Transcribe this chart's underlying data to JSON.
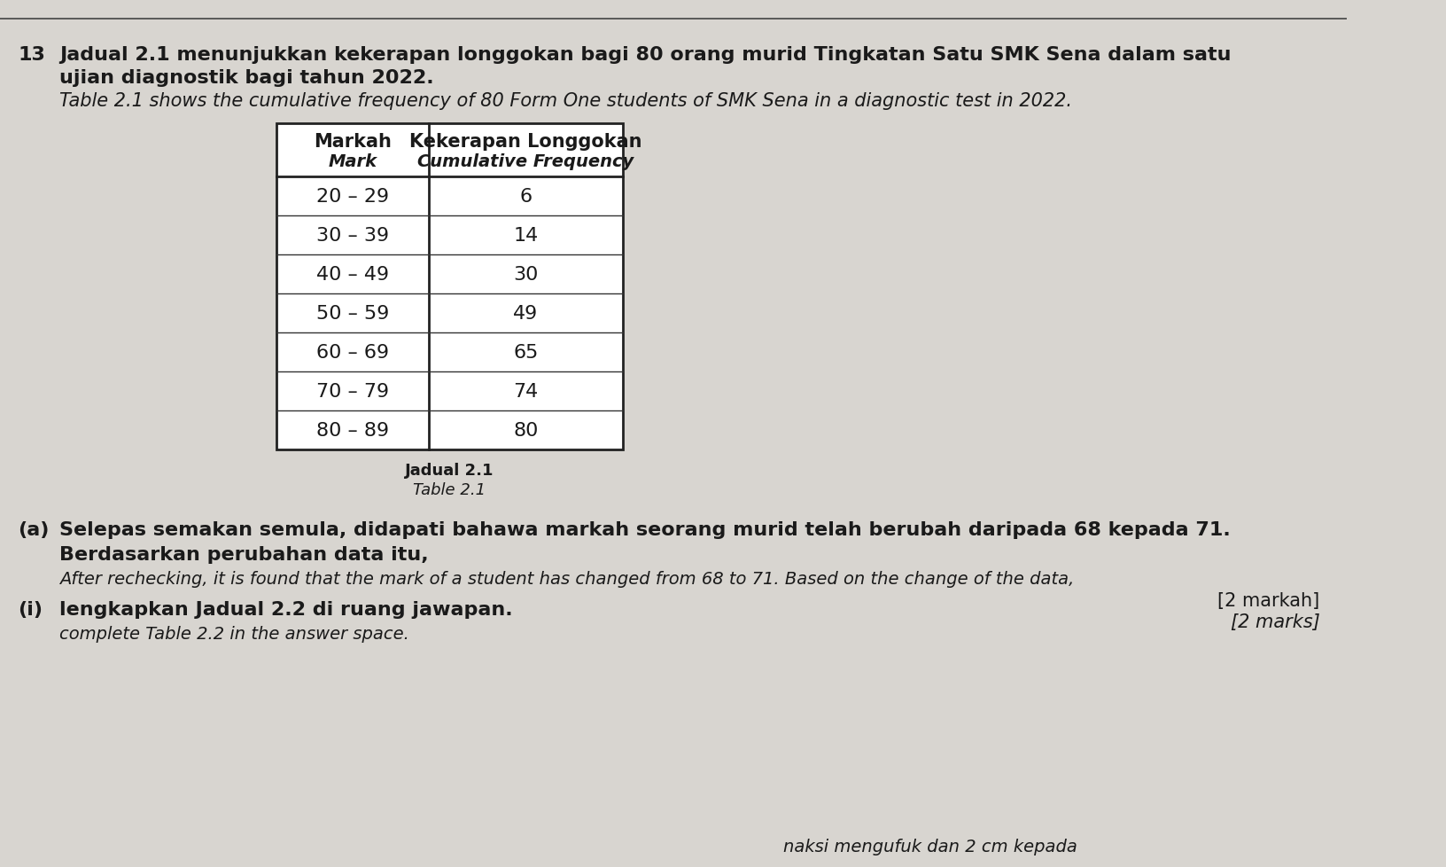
{
  "question_number": "13",
  "intro_text_line1": "Jadual 2.1 menunjukkan kekerapan longgokan bagi 80 orang murid Tingkatan Satu SMK Sena dalam satu",
  "intro_text_line2": "ujian diagnostik bagi tahun 2022.",
  "intro_italic_line": "Table 2.1 shows the cumulative frequency of 80 Form One students of SMK Sena in a diagnostic test in 2022.",
  "table_header_col1_line1": "Markah",
  "table_header_col1_line2": "Mark",
  "table_header_col2_line1": "Kekerapan Longgokan",
  "table_header_col2_line2": "Cumulative Frequency",
  "table_rows": [
    [
      "20 – 29",
      "6"
    ],
    [
      "30 – 39",
      "14"
    ],
    [
      "40 – 49",
      "30"
    ],
    [
      "50 – 59",
      "49"
    ],
    [
      "60 – 69",
      "65"
    ],
    [
      "70 – 79",
      "74"
    ],
    [
      "80 – 89",
      "80"
    ]
  ],
  "table_caption_line1": "Jadual 2.1",
  "table_caption_line2": "Table 2.1",
  "part_a_label": "(a)",
  "part_a_text_line1": "Selepas semakan semula, didapati bahawa markah seorang murid telah berubah daripada 68 kepada 71.",
  "part_a_text_line2": "Berdasarkan perubahan data itu,",
  "part_a_italic_line1": "After rechecking, it is found that the mark of a student has changed from 68 to 71. Based on the change of the data,",
  "marks_text_line1": "[2 markah]",
  "marks_text_line2": "[2 marks]",
  "part_i_label": "(i)",
  "part_i_text": "lengkapkan Jadual 2.2 di ruang jawapan.",
  "part_i_italic": "complete Table 2.2 in the answer space.",
  "bottom_text": "naksi mengufuk dan 2 cm kepada",
  "bg_color": "#d8d5d0",
  "table_bg": "#ffffff",
  "text_color": "#1a1a1a",
  "font_size_header": 16,
  "font_size_body": 15,
  "font_size_caption": 13,
  "font_size_table_header": 15,
  "font_size_table_body": 16
}
